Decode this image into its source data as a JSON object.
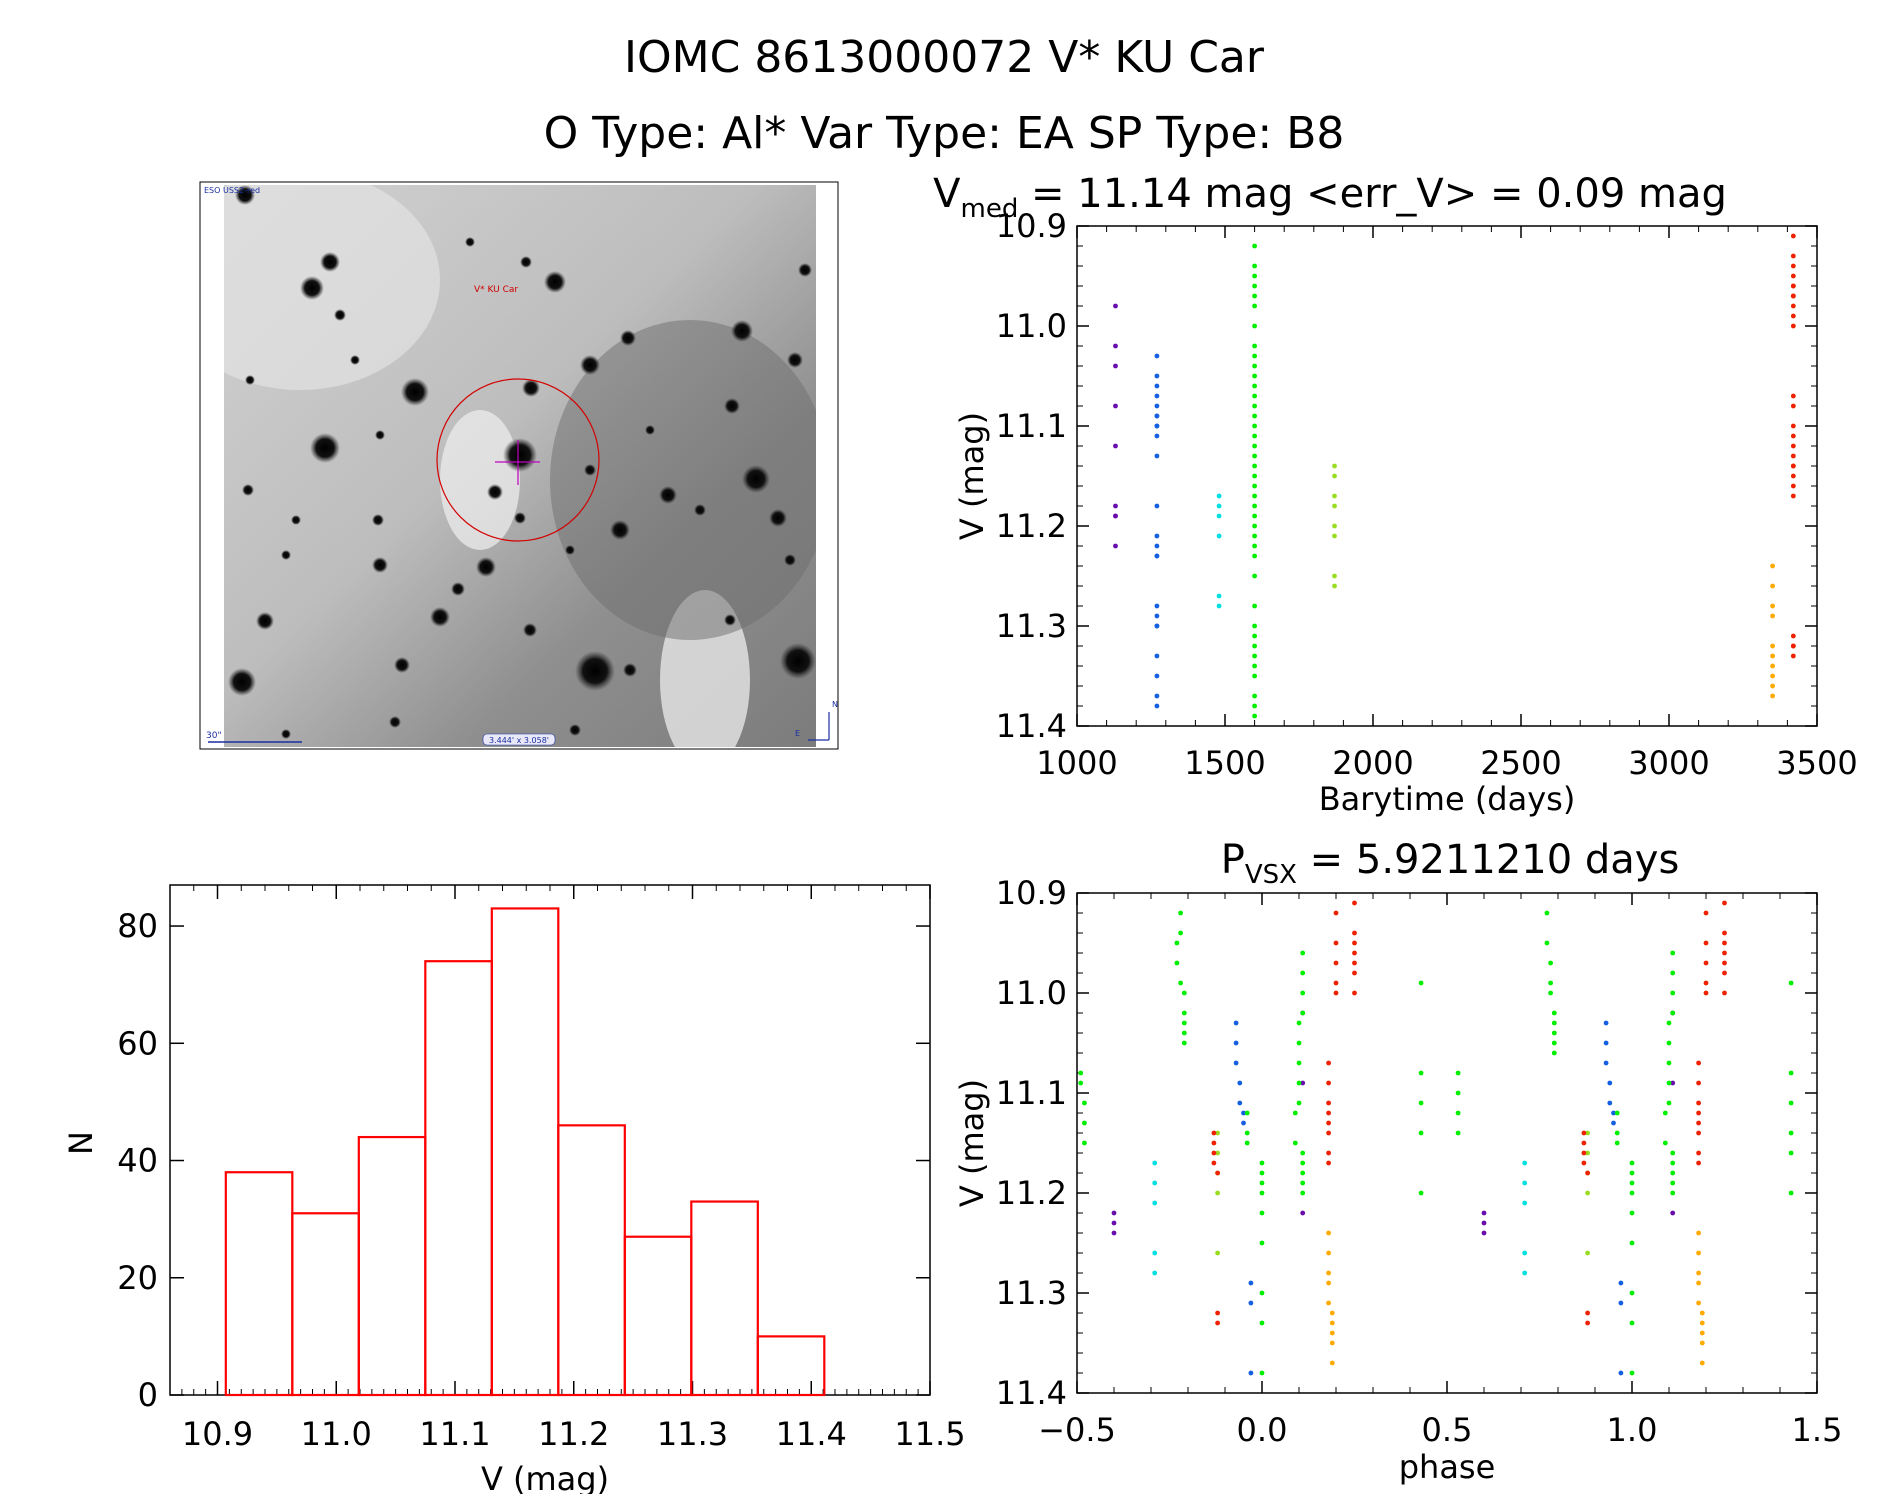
{
  "header": {
    "line1": "IOMC 8613000072   V* KU Car",
    "line2": "O Type: Al*  Var Type: EA  SP Type: B8"
  },
  "finder": {
    "survey_label": "ESO USS2-red",
    "target_label": "V* KU Car",
    "scale_label": "30\"",
    "fov_label": "3.444' x 3.058'",
    "north_label": "N",
    "east_label": "E"
  },
  "colors": {
    "histogram": "#ff0000",
    "circle": "#dd0000",
    "s1": "#6a0dad",
    "s2": "#1560e0",
    "s3": "#00e0e0",
    "s4": "#00ee00",
    "s5": "#99dd22",
    "s6": "#ffaa00",
    "s7": "#ee2200"
  },
  "chart_data": [
    {
      "id": "lightcurve",
      "type": "scatter",
      "title_main": "V",
      "title_sub": "med",
      "title_rest": " = 11.14 mag <err_V> = 0.09 mag",
      "xlabel": "Barytime (days)",
      "ylabel": "V (mag)",
      "xlim": [
        1000,
        3500
      ],
      "ylim": [
        10.9,
        11.4
      ],
      "y_inverted": true,
      "xticks": [
        1000,
        1500,
        2000,
        2500,
        3000,
        3500
      ],
      "xtick_labels": [
        "1000",
        "1500",
        "2000",
        "2500",
        "3000",
        "3500"
      ],
      "yticks": [
        10.9,
        11.0,
        11.1,
        11.2,
        11.3,
        11.4
      ],
      "ytick_labels": [
        "10.9",
        "11.0",
        "11.1",
        "11.2",
        "11.3",
        "11.4"
      ],
      "series": [
        {
          "name": "s1",
          "color": "#6a0dad",
          "x": [
            1130,
            1130,
            1130,
            1130,
            1130,
            1130,
            1130,
            1130,
            1130
          ],
          "y": [
            10.98,
            11.02,
            11.04,
            11.08,
            11.12,
            11.18,
            11.19,
            11.19,
            11.22
          ]
        },
        {
          "name": "s2",
          "color": "#1560e0",
          "x": [
            1270,
            1270,
            1270,
            1270,
            1270,
            1270,
            1270,
            1270,
            1270,
            1270,
            1270,
            1270,
            1270,
            1270,
            1270,
            1270,
            1270,
            1270,
            1270,
            1270,
            1270,
            1270,
            1270,
            1270
          ],
          "y": [
            11.03,
            11.05,
            11.06,
            11.07,
            11.08,
            11.09,
            11.09,
            11.1,
            11.1,
            11.11,
            11.13,
            11.18,
            11.21,
            11.22,
            11.23,
            11.23,
            11.28,
            11.29,
            11.3,
            11.3,
            11.33,
            11.35,
            11.37,
            11.38
          ]
        },
        {
          "name": "s3",
          "color": "#00e0e0",
          "x": [
            1480,
            1480,
            1480,
            1480,
            1480,
            1480
          ],
          "y": [
            11.17,
            11.18,
            11.19,
            11.21,
            11.27,
            11.28
          ]
        },
        {
          "name": "s4",
          "color": "#00ee00",
          "x": [
            1600,
            1600,
            1600,
            1600,
            1600,
            1600,
            1600,
            1600,
            1600,
            1600,
            1600,
            1600,
            1600,
            1600,
            1600,
            1600,
            1600,
            1600,
            1600,
            1600,
            1600,
            1600,
            1600,
            1600,
            1600,
            1600,
            1600,
            1600,
            1600,
            1600,
            1600,
            1600,
            1600,
            1600,
            1600,
            1600,
            1600,
            1600,
            1600,
            1600
          ],
          "y": [
            10.92,
            10.94,
            10.95,
            10.96,
            10.97,
            10.98,
            11.0,
            11.02,
            11.03,
            11.04,
            11.05,
            11.06,
            11.07,
            11.08,
            11.09,
            11.1,
            11.11,
            11.12,
            11.13,
            11.14,
            11.15,
            11.16,
            11.17,
            11.18,
            11.19,
            11.2,
            11.21,
            11.22,
            11.23,
            11.25,
            11.28,
            11.3,
            11.31,
            11.32,
            11.33,
            11.34,
            11.35,
            11.37,
            11.38,
            11.39
          ]
        },
        {
          "name": "s5",
          "color": "#99dd22",
          "x": [
            1870,
            1870,
            1870,
            1870,
            1870,
            1870,
            1870,
            1870
          ],
          "y": [
            11.14,
            11.15,
            11.17,
            11.18,
            11.2,
            11.21,
            11.25,
            11.26
          ]
        },
        {
          "name": "s6",
          "color": "#ffaa00",
          "x": [
            3350,
            3350,
            3350,
            3350,
            3350,
            3350,
            3350,
            3350,
            3350,
            3350
          ],
          "y": [
            11.24,
            11.26,
            11.28,
            11.29,
            11.32,
            11.33,
            11.34,
            11.35,
            11.36,
            11.37
          ]
        },
        {
          "name": "s7",
          "color": "#ee2200",
          "x": [
            3420,
            3420,
            3420,
            3420,
            3420,
            3420,
            3420,
            3420,
            3420,
            3420,
            3420,
            3420,
            3420,
            3420,
            3420,
            3420,
            3420,
            3420,
            3420,
            3420,
            3420,
            3420,
            3420,
            3420,
            3420,
            3420
          ],
          "y": [
            10.91,
            10.93,
            10.94,
            10.95,
            10.96,
            10.96,
            10.97,
            10.97,
            10.98,
            10.99,
            11.0,
            11.07,
            11.08,
            11.1,
            11.11,
            11.12,
            11.13,
            11.14,
            11.14,
            11.15,
            11.16,
            11.17,
            11.31,
            11.32,
            11.32,
            11.33
          ]
        }
      ]
    },
    {
      "id": "phased",
      "type": "scatter",
      "title_main": "P",
      "title_sub": "VSX",
      "title_rest": " = 5.9211210 days",
      "xlabel": "phase",
      "ylabel": "V (mag)",
      "xlim": [
        -0.5,
        1.5
      ],
      "ylim": [
        10.9,
        11.4
      ],
      "y_inverted": true,
      "xticks": [
        -0.5,
        0.0,
        0.5,
        1.0,
        1.5
      ],
      "xtick_labels": [
        "−0.5",
        "0.0",
        "0.5",
        "1.0",
        "1.5"
      ],
      "yticks": [
        10.9,
        11.0,
        11.1,
        11.2,
        11.3,
        11.4
      ],
      "ytick_labels": [
        "10.9",
        "11.0",
        "11.1",
        "11.2",
        "11.3",
        "11.4"
      ],
      "series": [
        {
          "name": "s1",
          "color": "#6a0dad",
          "x": [
            -0.4,
            -0.4,
            -0.4,
            0.11,
            0.11,
            0.11,
            0.6,
            0.6,
            0.6,
            1.11,
            1.11,
            1.11
          ],
          "y": [
            11.22,
            11.23,
            11.24,
            11.02,
            11.09,
            11.22,
            11.22,
            11.23,
            11.24,
            11.02,
            11.09,
            11.22
          ]
        },
        {
          "name": "s2",
          "color": "#1560e0",
          "x": [
            -0.07,
            -0.07,
            -0.07,
            -0.06,
            -0.06,
            -0.05,
            -0.05,
            -0.03,
            -0.03,
            -0.03,
            0.93,
            0.93,
            0.93,
            0.94,
            0.94,
            0.95,
            0.95,
            0.97,
            0.97,
            0.97
          ],
          "y": [
            11.03,
            11.05,
            11.07,
            11.09,
            11.11,
            11.12,
            11.13,
            11.29,
            11.31,
            11.38,
            11.03,
            11.05,
            11.07,
            11.09,
            11.11,
            11.12,
            11.13,
            11.29,
            11.31,
            11.38
          ]
        },
        {
          "name": "s3",
          "color": "#00e0e0",
          "x": [
            -0.29,
            -0.29,
            -0.29,
            -0.29,
            -0.29,
            0.71,
            0.71,
            0.71,
            0.71,
            0.71
          ],
          "y": [
            11.17,
            11.19,
            11.21,
            11.26,
            11.28,
            11.17,
            11.19,
            11.21,
            11.26,
            11.28
          ]
        },
        {
          "name": "s4",
          "color": "#00ee00",
          "x": [
            -0.49,
            -0.49,
            -0.48,
            -0.48,
            -0.48,
            -0.23,
            -0.23,
            -0.22,
            -0.22,
            -0.22,
            -0.21,
            -0.21,
            -0.21,
            -0.21,
            -0.21,
            -0.04,
            -0.04,
            -0.04,
            0.0,
            0.0,
            0.0,
            0.0,
            0.0,
            0.0,
            0.0,
            0.0,
            0.0,
            0.09,
            0.09,
            0.1,
            0.1,
            0.1,
            0.1,
            0.1,
            0.11,
            0.11,
            0.11,
            0.11,
            0.11,
            0.11,
            0.11,
            0.11,
            0.11,
            0.43,
            0.43,
            0.43,
            0.43,
            0.43,
            0.53,
            0.53,
            0.53,
            0.53,
            0.77,
            0.77,
            0.78,
            0.78,
            0.78,
            0.79,
            0.79,
            0.79,
            0.79,
            0.79,
            0.96,
            0.96,
            0.96,
            1.0,
            1.0,
            1.0,
            1.0,
            1.0,
            1.0,
            1.0,
            1.0,
            1.0,
            1.09,
            1.09,
            1.1,
            1.1,
            1.1,
            1.1,
            1.1,
            1.11,
            1.11,
            1.11,
            1.11,
            1.11,
            1.11,
            1.11,
            1.11,
            1.11,
            1.43,
            1.43,
            1.43,
            1.43,
            1.43,
            1.43
          ],
          "y": [
            11.08,
            11.09,
            11.11,
            11.13,
            11.15,
            10.95,
            10.97,
            10.92,
            10.94,
            10.99,
            11.0,
            11.02,
            11.03,
            11.04,
            11.05,
            11.12,
            11.14,
            11.15,
            11.17,
            11.18,
            11.19,
            11.2,
            11.22,
            11.25,
            11.3,
            11.33,
            11.38,
            11.12,
            11.15,
            11.03,
            11.05,
            11.07,
            11.09,
            11.11,
            11.16,
            11.17,
            11.18,
            11.19,
            11.2,
            10.96,
            10.98,
            11.0,
            11.02,
            10.99,
            11.08,
            11.11,
            11.14,
            11.2,
            11.08,
            11.1,
            11.12,
            11.14,
            10.92,
            10.95,
            10.97,
            10.99,
            11.0,
            11.02,
            11.03,
            11.04,
            11.05,
            11.06,
            11.12,
            11.14,
            11.15,
            11.17,
            11.18,
            11.19,
            11.2,
            11.22,
            11.25,
            11.3,
            11.33,
            11.38,
            11.12,
            11.15,
            11.03,
            11.05,
            11.07,
            11.09,
            11.11,
            11.16,
            11.17,
            11.18,
            11.19,
            11.2,
            10.96,
            10.98,
            11.0,
            11.02,
            10.99,
            11.08,
            11.11,
            11.14,
            11.16,
            11.2
          ]
        },
        {
          "name": "s5",
          "color": "#99dd22",
          "x": [
            -0.12,
            -0.12,
            -0.12,
            -0.12,
            -0.12,
            0.88,
            0.88,
            0.88,
            0.88,
            0.88
          ],
          "y": [
            11.14,
            11.16,
            11.18,
            11.2,
            11.26,
            11.14,
            11.16,
            11.18,
            11.2,
            11.26
          ]
        },
        {
          "name": "s6",
          "color": "#ffaa00",
          "x": [
            0.18,
            0.18,
            0.18,
            0.18,
            0.18,
            0.19,
            0.19,
            0.19,
            0.19,
            0.19,
            1.18,
            1.18,
            1.18,
            1.18,
            1.18,
            1.19,
            1.19,
            1.19,
            1.19,
            1.19
          ],
          "y": [
            11.24,
            11.26,
            11.28,
            11.29,
            11.31,
            11.32,
            11.33,
            11.34,
            11.35,
            11.37,
            11.24,
            11.26,
            11.28,
            11.29,
            11.31,
            11.32,
            11.33,
            11.34,
            11.35,
            11.37
          ]
        },
        {
          "name": "s7",
          "color": "#ee2200",
          "x": [
            -0.13,
            -0.13,
            -0.13,
            -0.13,
            -0.12,
            -0.12,
            -0.12,
            0.18,
            0.18,
            0.18,
            0.18,
            0.2,
            0.2,
            0.2,
            0.2,
            0.2,
            0.25,
            0.25,
            0.25,
            0.25,
            0.25,
            0.25,
            0.25,
            0.18,
            0.18,
            0.18,
            0.18,
            0.87,
            0.87,
            0.87,
            0.87,
            0.88,
            0.88,
            0.88,
            1.18,
            1.18,
            1.18,
            1.18,
            1.2,
            1.2,
            1.2,
            1.2,
            1.2,
            1.25,
            1.25,
            1.25,
            1.25,
            1.25,
            1.25,
            1.25,
            1.18,
            1.18,
            1.18,
            1.18
          ],
          "y": [
            11.14,
            11.15,
            11.16,
            11.17,
            11.18,
            11.32,
            11.33,
            11.07,
            11.09,
            11.11,
            11.12,
            10.92,
            10.95,
            10.97,
            10.99,
            11.0,
            10.91,
            10.94,
            10.95,
            10.96,
            10.97,
            10.98,
            11.0,
            11.13,
            11.14,
            11.16,
            11.17,
            11.14,
            11.15,
            11.16,
            11.17,
            11.18,
            11.32,
            11.33,
            11.07,
            11.09,
            11.11,
            11.12,
            10.92,
            10.95,
            10.97,
            10.99,
            11.0,
            10.91,
            10.94,
            10.95,
            10.96,
            10.97,
            10.98,
            11.0,
            11.13,
            11.14,
            11.16,
            11.17
          ]
        }
      ]
    },
    {
      "id": "histogram",
      "type": "bar",
      "title": "",
      "xlabel": "V (mag)",
      "ylabel": "N",
      "xlim": [
        10.86,
        11.5
      ],
      "ylim": [
        0,
        87
      ],
      "xticks": [
        10.9,
        11.0,
        11.1,
        11.2,
        11.3,
        11.4,
        11.5
      ],
      "xtick_labels": [
        "10.9",
        "11.0",
        "11.1",
        "11.2",
        "11.3",
        "11.4",
        "11.5"
      ],
      "yticks": [
        0,
        20,
        40,
        60,
        80
      ],
      "ytick_labels": [
        "0",
        "20",
        "40",
        "60",
        "80"
      ],
      "bin_edges": [
        10.907,
        10.963,
        11.019,
        11.075,
        11.131,
        11.187,
        11.243,
        11.299,
        11.355,
        11.411
      ],
      "values": [
        38,
        31,
        44,
        74,
        83,
        46,
        27,
        33,
        10
      ]
    }
  ]
}
